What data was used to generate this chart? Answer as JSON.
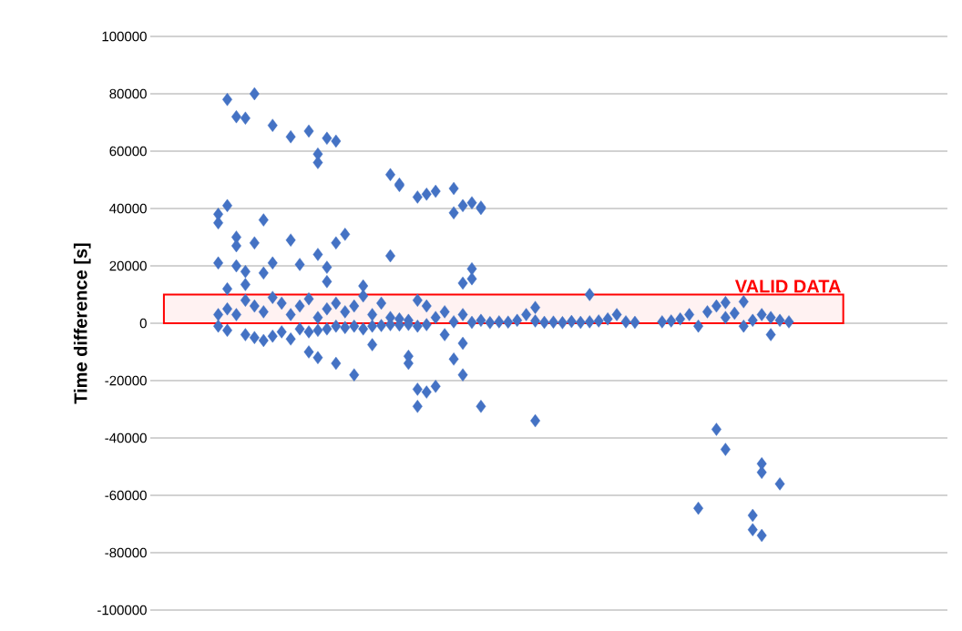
{
  "chart_data": {
    "type": "scatter",
    "ylabel": "Time difference [s]",
    "categories": [
      null,
      null,
      null,
      null,
      null,
      null,
      null,
      null,
      null,
      null,
      null,
      null,
      null,
      null,
      null,
      null,
      null,
      null,
      null,
      null,
      null,
      null,
      null,
      null,
      null,
      null,
      null,
      null,
      null,
      null,
      null,
      null,
      null,
      null,
      null,
      null,
      null,
      null,
      null,
      null,
      null,
      null,
      null,
      null,
      null,
      null,
      null,
      null,
      null,
      null,
      null,
      null,
      null,
      null,
      null,
      null,
      null,
      null,
      null,
      null,
      null,
      null,
      null,
      null,
      null,
      null,
      null,
      null,
      null,
      null,
      null,
      null,
      null,
      null,
      null,
      null,
      null,
      null,
      null,
      null,
      null,
      null,
      null,
      null,
      null,
      null,
      null,
      null
    ],
    "ylim": [
      -100000,
      100000
    ],
    "yticks": [
      -100000,
      -80000,
      -60000,
      -40000,
      -20000,
      0,
      20000,
      40000,
      60000,
      80000,
      100000
    ],
    "tick_labels": "y",
    "grid": "y",
    "marker": "diamond",
    "bands": [
      {
        "axis": "y",
        "from": 0,
        "to": 10000,
        "label": "VALID DATA",
        "color": "#ff0000"
      }
    ],
    "series": [
      {
        "color": "#4472c4",
        "values": [
          null,
          null,
          null,
          null,
          null,
          null,
          null,
          35000,
          78000,
          72000,
          71500,
          80000,
          36000,
          69000,
          7000,
          65000,
          20500,
          67000,
          56000,
          64500,
          63500,
          31000,
          -18000,
          13000,
          -7500,
          7000,
          51800,
          48500,
          -11500,
          44000,
          45000,
          46000,
          -4000,
          47000,
          41000,
          42000,
          40500,
          200,
          500,
          400,
          1000,
          3000,
          5500,
          300,
          400,
          200,
          600,
          300,
          10000,
          800,
          1500,
          3000,
          500,
          300,
          null,
          null,
          500,
          800,
          1500,
          3000,
          -64500,
          4000,
          -37000,
          7200,
          3500,
          7500,
          -67000,
          -49000,
          -4000,
          -56000,
          500,
          null,
          null,
          null,
          null,
          null,
          null,
          null,
          null,
          null,
          null,
          null,
          null,
          null,
          null,
          null,
          null,
          null
        ]
      },
      {
        "color": "#4472c4",
        "values": [
          null,
          null,
          null,
          null,
          null,
          null,
          null,
          38000,
          41000,
          30000,
          18000,
          28000,
          17500,
          21000,
          -3000,
          29000,
          6000,
          -10000,
          24000,
          19500,
          28000,
          4000,
          6000,
          9500,
          3000,
          -800,
          23500,
          48000,
          -14000,
          -23000,
          -24000,
          -22000,
          4000,
          38500,
          14000,
          19000,
          40000,
          null,
          null,
          null,
          null,
          null,
          -34000,
          null,
          null,
          null,
          null,
          null,
          500,
          null,
          null,
          null,
          null,
          null,
          null,
          null,
          null,
          null,
          null,
          null,
          -1000,
          null,
          6000,
          -44000,
          null,
          -1000,
          -72000,
          -52000,
          2000,
          1000,
          null,
          null,
          null,
          null,
          null,
          null,
          null,
          null,
          null,
          null,
          null,
          null,
          null,
          null,
          null,
          null,
          null,
          null
        ]
      },
      {
        "color": "#4472c4",
        "values": [
          null,
          null,
          null,
          null,
          null,
          null,
          null,
          21000,
          12000,
          27000,
          13500,
          6000,
          4000,
          9000,
          null,
          3000,
          -2000,
          8500,
          59000,
          14500,
          -14000,
          -1500,
          -1000,
          -2000,
          -1000,
          null,
          2000,
          1500,
          1000,
          -29000,
          6000,
          2000,
          null,
          -12500,
          -7000,
          15500,
          -29000,
          null,
          null,
          null,
          null,
          null,
          800,
          null,
          null,
          null,
          null,
          null,
          null,
          null,
          null,
          null,
          null,
          null,
          null,
          null,
          null,
          null,
          null,
          null,
          null,
          null,
          null,
          2000,
          null,
          null,
          1000,
          -74000,
          null,
          null,
          null,
          null,
          null,
          null,
          null,
          null,
          null,
          null,
          null,
          null,
          null,
          null,
          null,
          null,
          null,
          null,
          null,
          null
        ]
      },
      {
        "color": "#4472c4",
        "values": [
          null,
          null,
          null,
          null,
          null,
          null,
          null,
          3000,
          5000,
          20000,
          8000,
          -5000,
          -6000,
          -4500,
          null,
          -5500,
          null,
          -3000,
          -12000,
          5000,
          7000,
          null,
          null,
          null,
          null,
          null,
          -500,
          -600,
          -400,
          8000,
          -500,
          null,
          null,
          500,
          -18000,
          300,
          1000,
          null,
          null,
          null,
          null,
          null,
          null,
          null,
          null,
          null,
          null,
          null,
          null,
          null,
          null,
          null,
          null,
          null,
          null,
          null,
          null,
          null,
          null,
          null,
          null,
          null,
          null,
          null,
          null,
          null,
          null,
          3000,
          null,
          null,
          null,
          null,
          null,
          null,
          null,
          null,
          null,
          null,
          null,
          null,
          null,
          null,
          null,
          null,
          null,
          null,
          null,
          null
        ]
      },
      {
        "color": "#4472c4",
        "values": [
          null,
          null,
          null,
          null,
          null,
          null,
          null,
          -1000,
          -2500,
          3000,
          -4000,
          null,
          null,
          null,
          null,
          null,
          null,
          null,
          2000,
          -2000,
          -1000,
          null,
          null,
          null,
          null,
          null,
          null,
          null,
          null,
          -1000,
          null,
          null,
          null,
          null,
          3000,
          null,
          null,
          null,
          null,
          null,
          null,
          null,
          null,
          null,
          null,
          null,
          null,
          null,
          null,
          null,
          null,
          null,
          null,
          null,
          null,
          null,
          null,
          null,
          null,
          null,
          null,
          null,
          null,
          null,
          null,
          null,
          null,
          null,
          null,
          null,
          null,
          null,
          null,
          null,
          null,
          null,
          null,
          null,
          null,
          null,
          null,
          null,
          null,
          null,
          null,
          null,
          null,
          null
        ]
      },
      {
        "color": "#4472c4",
        "values": [
          null,
          null,
          null,
          null,
          null,
          null,
          null,
          null,
          null,
          null,
          null,
          null,
          null,
          null,
          null,
          null,
          null,
          null,
          -2500,
          null,
          null,
          null,
          null,
          null,
          null,
          null,
          null,
          null,
          null,
          null,
          null,
          null,
          null,
          null,
          null,
          null,
          null,
          null,
          null,
          null,
          null,
          null,
          null,
          null,
          null,
          null,
          null,
          null,
          null,
          null,
          null,
          null,
          null,
          null,
          null,
          null,
          null,
          null,
          null,
          null,
          null,
          null,
          null,
          null,
          null,
          null,
          null,
          null,
          null,
          null,
          null,
          null,
          null,
          null,
          null,
          null,
          null,
          null,
          null,
          null,
          null,
          null,
          null,
          null,
          null,
          null,
          null,
          null
        ]
      }
    ]
  }
}
